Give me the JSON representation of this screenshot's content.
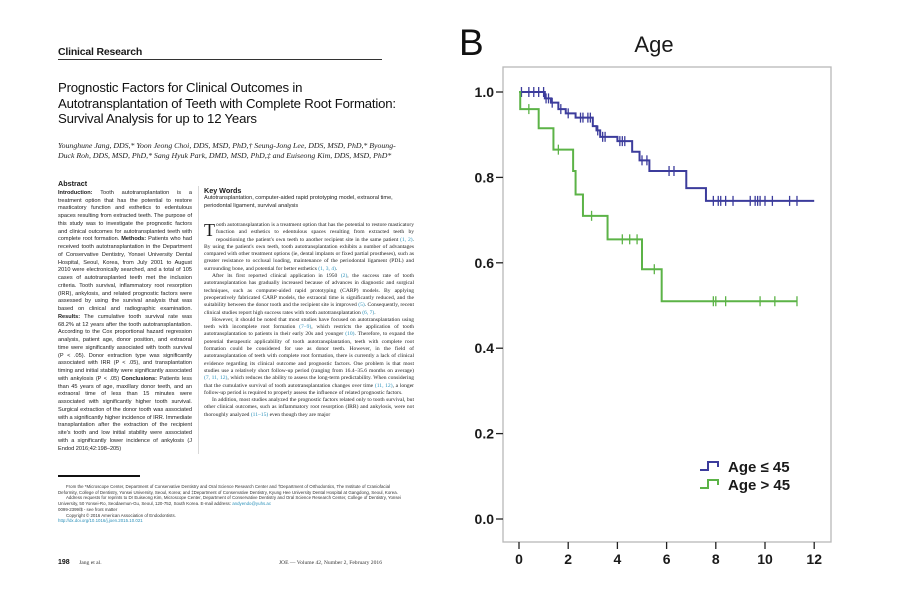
{
  "article": {
    "section": "Clinical Research",
    "title": "Prognostic Factors for Clinical Outcomes in Autotransplantation of Teeth with Complete Root Formation: Survival Analysis for up to 12 Years",
    "authors": "Younghune Jang, DDS,* Yoon Jeong Choi, DDS, MSD, PhD,† Seung-Jong Lee, DDS, MSD, PhD,* Byoung-Duck Roh, DDS, MSD, PhD,* Sang Hyuk Park, DMD, MSD, PhD,‡ and Euiseong Kim, DDS, MSD, PhD*",
    "abstract": {
      "heading": "Abstract",
      "intro_label": "Introduction:",
      "intro": "Tooth autotransplantation is a treatment option that has the potential to restore masticatory function and esthetics to edentulous spaces resulting from extracted teeth. The purpose of this study was to investigate the prognostic factors and clinical outcomes for autotransplanted teeth with complete root formation.",
      "methods_label": "Methods:",
      "methods": "Patients who had received tooth autotransplantation in the Department of Conservative Dentistry, Yonsei University Dental Hospital, Seoul, Korea, from July 2001 to August 2010 were electronically searched, and a total of 105 cases of autotransplanted teeth met the inclusion criteria. Tooth survival, inflammatory root resorption (IRR), ankylosis, and related prognostic factors were assessed by using the survival analysis that was based on clinical and radiographic examination.",
      "results_label": "Results:",
      "results": "The cumulative tooth survival rate was 68.2% at 12 years after the tooth autotransplantation. According to the Cox proportional hazard regression analysis, patient age, donor position, and extraoral time were significantly associated with tooth survival (P < .05). Donor extraction type was significantly associated with IRR (P < .05), and transplantation timing and initial stability were significantly associated with ankylosis (P < .05)",
      "conclusions_label": "Conclusions:",
      "conclusions": "Patients less than 45 years of age, maxillary donor teeth, and an extraoral time of less than 15 minutes were associated with significantly higher tooth survival. Surgical extraction of the donor tooth was associated with a significantly higher incidence of IRR. Immediate transplantation after the extraction of the recipient site's tooth and low initial stability were associated with a significantly lower incidence of ankylosis (J Endod 2016;42:198–205)"
    },
    "keywords": {
      "heading": "Key Words",
      "text": "Autotransplantation, computer-aided rapid prototyping model, extraoral time, periodontal ligament, survival analysis"
    },
    "body": {
      "dropcap": "T",
      "p1": "ooth autotransplantation is a treatment option that has the potential to restore masticatory function and esthetics to edentulous spaces resulting from extracted teeth by repositioning the patient's own teeth to another recipient site in the same patient ",
      "p1_cite1": "(1, 2)",
      "p1b": ". By using the patient's own teeth, tooth autotransplantation exhibits a number of advantages compared with other treatment options (ie, dental implants or fixed partial prostheses), such as greater resistance to occlusal loading, maintenance of the periodontal ligament (PDL) and surrounding bone, and potential for better esthetics ",
      "p1_cite2": "(1, 3, 4)",
      "p1c": ".",
      "p2a": "After its first reported clinical application in 1950 ",
      "p2_cite1": "(2)",
      "p2b": ", the success rate of tooth autotransplantation has gradually increased because of advances in diagnostic and surgical techniques, such as computer-aided rapid prototyping (CARP) models. By applying preoperatively fabricated CARP models, the extraoral time is significantly reduced, and the suitability between the donor tooth and the recipient site is improved ",
      "p2_cite2": "(5)",
      "p2c": ". Consequently, recent clinical studies report high success rates with tooth autotransplantation ",
      "p2_cite3": "(6, 7)",
      "p2d": ".",
      "p3a": "However, it should be noted that most studies have focused on autotransplantation using teeth with incomplete root formation ",
      "p3_cite1": "(7–9)",
      "p3b": ", which restricts the application of tooth autotransplantation to patients in their early 20s and younger ",
      "p3_cite2": "(10)",
      "p3c": ". Therefore, to expand the potential therapeutic applicability of tooth autotransplantation, teeth with complete root formation could be considered for use as donor teeth. However, in the field of autotransplantation of teeth with complete root formation, there is currently a lack of clinical evidence regarding its clinical outcome and prognostic factors. One problem is that most studies use a relatively short follow-up period (ranging from 16.4–35.6 months on average) ",
      "p3_cite3": "(7, 11, 12)",
      "p3d": ", which reduces the ability to assess the long-term predictability. When considering that the cumulative survival of tooth autotransplantation changes over time ",
      "p3_cite4": "(11, 12)",
      "p3e": ", a longer follow-up period is required to properly assess the influence of related prognostic factors.",
      "p4a": "In addition, most studies analyzed the prognostic factors related only to tooth survival, but other clinical outcomes, such as inflammatory root resorption (IRR) and ankylosis, were not thoroughly analyzed ",
      "p4_cite1": "(11–15)",
      "p4b": " even though they are major"
    },
    "footnotes": {
      "affil": "From the *Microscope Center, Department of Conservative Dentistry and Oral Science Research Center and †Department of Orthodontics, The Institute of Craniofacial Deformity, College of Dentistry, Yonsei University, Seoul, Korea; and ‡Department of Conservative Dentistry, Kyung Hee University Dental Hospital at Gangdong, Seoul, Korea.",
      "address": "Address requests for reprints to Dr Euiseong Kim, Microscope Center, Department of Conservative Dentistry and Oral Science Research Center, College of Dentistry, Yonsei University, 50 Yonsei-Ro, Seodaemun-Gu, Seoul, 120-752, South Korea. E-mail address: ",
      "email": "andyendo@yuhs.ac",
      "issn": "0099-2399/$ - see front matter",
      "copyright": "Copyright © 2016 American Association of Endodontists.",
      "doi": "http://dx.doi.org/10.1016/j.joen.2015.10.021"
    },
    "footer": {
      "page": "198",
      "running_author": "Jang et al.",
      "journal": "JOE — Volume 42, Number 2, February 2016"
    }
  },
  "figure": {
    "panel_letter": "B"
  },
  "chart_data": {
    "type": "line",
    "subtype": "kaplan-meier-step",
    "title": "Age",
    "xlabel": "",
    "ylabel": "",
    "xlim": [
      -0.5,
      12.6
    ],
    "ylim": [
      -0.05,
      1.06
    ],
    "xticks": [
      0,
      2,
      4,
      6,
      8,
      10,
      12
    ],
    "xtick_labels": [
      "0",
      "2",
      "4",
      "6",
      "8",
      "10",
      "12"
    ],
    "yticks": [
      0.0,
      0.2,
      0.4,
      0.6,
      0.8,
      1.0
    ],
    "ytick_labels": [
      "0.0",
      "0.2",
      "0.4",
      "0.6",
      "0.8",
      "1.0"
    ],
    "grid": false,
    "legend_position": "bottom-right",
    "series": [
      {
        "name": "Age ≤ 45",
        "legend_label": "Age ≤ 45",
        "color": "#3c3c9c",
        "steps": [
          [
            0,
            1.0
          ],
          [
            1.05,
            0.985
          ],
          [
            1.3,
            0.975
          ],
          [
            1.6,
            0.96
          ],
          [
            1.9,
            0.95
          ],
          [
            2.3,
            0.94
          ],
          [
            3.0,
            0.92
          ],
          [
            3.15,
            0.91
          ],
          [
            3.3,
            0.895
          ],
          [
            4.0,
            0.885
          ],
          [
            4.6,
            0.86
          ],
          [
            4.9,
            0.84
          ],
          [
            5.3,
            0.815
          ],
          [
            6.8,
            0.775
          ],
          [
            7.6,
            0.745
          ]
        ],
        "end_time": 12.0,
        "censored": [
          0.1,
          0.4,
          0.6,
          0.8,
          1.0,
          1.1,
          1.2,
          1.35,
          1.7,
          2.0,
          2.5,
          2.6,
          2.8,
          2.9,
          3.2,
          3.4,
          3.5,
          4.1,
          4.2,
          4.3,
          5.0,
          5.2,
          6.1,
          6.3,
          7.9,
          8.1,
          8.2,
          8.4,
          8.7,
          9.4,
          9.6,
          9.7,
          9.8,
          10.0,
          10.3,
          11.0,
          11.3
        ]
      },
      {
        "name": "Age > 45",
        "legend_label": "Age > 45",
        "color": "#5cb347",
        "steps": [
          [
            0,
            1.0
          ],
          [
            0.05,
            0.96
          ],
          [
            0.8,
            0.915
          ],
          [
            1.4,
            0.865
          ],
          [
            2.2,
            0.815
          ],
          [
            2.3,
            0.76
          ],
          [
            2.6,
            0.71
          ],
          [
            3.6,
            0.655
          ],
          [
            5.0,
            0.585
          ],
          [
            5.8,
            0.51
          ]
        ],
        "end_time": 11.3,
        "censored": [
          0.4,
          1.6,
          2.95,
          4.2,
          4.5,
          4.8,
          5.5,
          7.9,
          8.0,
          8.4,
          9.8,
          10.4,
          11.3
        ]
      }
    ]
  }
}
